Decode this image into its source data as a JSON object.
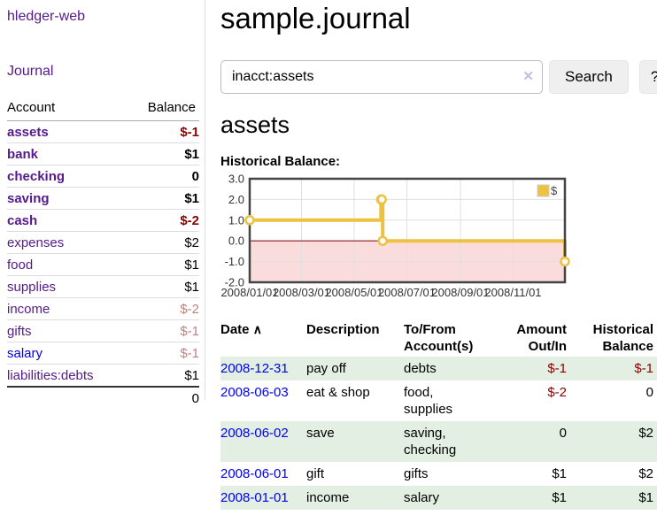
{
  "sidebar": {
    "app_title": "hledger-web",
    "journal_label": "Journal",
    "accounts_table": {
      "headers": {
        "account": "Account",
        "balance": "Balance"
      },
      "rows": [
        {
          "name": "assets",
          "balance": "$-1",
          "depth": 1,
          "bold": true,
          "negative": "strong",
          "link": "purple"
        },
        {
          "name": "bank",
          "balance": "$1",
          "depth": 2,
          "bold": true,
          "negative": "none",
          "link": "purple"
        },
        {
          "name": "checking",
          "balance": "0",
          "depth": 3,
          "bold": true,
          "negative": "none",
          "link": "purple"
        },
        {
          "name": "saving",
          "balance": "$1",
          "depth": 3,
          "bold": true,
          "negative": "none",
          "link": "purple"
        },
        {
          "name": "cash",
          "balance": "$-2",
          "depth": 2,
          "bold": true,
          "negative": "strong",
          "link": "purple"
        },
        {
          "name": "expenses",
          "balance": "$2",
          "depth": 1,
          "bold": false,
          "negative": "none",
          "link": "purple"
        },
        {
          "name": "food",
          "balance": "$1",
          "depth": 2,
          "bold": false,
          "negative": "none",
          "link": "purple"
        },
        {
          "name": "supplies",
          "balance": "$1",
          "depth": 2,
          "bold": false,
          "negative": "none",
          "link": "purple"
        },
        {
          "name": "income",
          "balance": "$-2",
          "depth": 1,
          "bold": false,
          "negative": "muted",
          "link": "purple"
        },
        {
          "name": "gifts",
          "balance": "$-1",
          "depth": 2,
          "bold": false,
          "negative": "muted",
          "link": "purple"
        },
        {
          "name": "salary",
          "balance": "$-1",
          "depth": 2,
          "bold": false,
          "negative": "muted",
          "link": "blue"
        },
        {
          "name": "liabilities:debts",
          "balance": "$1",
          "depth": 1,
          "bold": false,
          "negative": "none",
          "link": "purple"
        }
      ],
      "total": "0"
    }
  },
  "header": {
    "title": "sample.journal"
  },
  "search": {
    "query": "inacct:assets",
    "clear_icon_glyph": "✕",
    "search_button_label": "Search",
    "help_button_label": "?"
  },
  "account_page": {
    "heading": "assets",
    "chart_label": "Historical Balance:"
  },
  "chart_data": {
    "type": "line",
    "subtype": "step",
    "title": "Historical Balance",
    "legend": [
      {
        "label": "$",
        "color": "#edc240"
      }
    ],
    "legend_position": "top-right",
    "grid": true,
    "x": [
      "2008-01-01",
      "2008-06-01",
      "2008-06-02",
      "2008-06-03",
      "2008-12-31"
    ],
    "x_days": [
      0,
      152,
      153,
      154,
      365
    ],
    "series": [
      {
        "name": "$",
        "values": [
          1,
          2,
          2,
          0,
          -1
        ]
      }
    ],
    "ylim": [
      -2,
      3
    ],
    "xlim_days": [
      0,
      365
    ],
    "y_ticks": [
      "3.0",
      "2.0",
      "1.0",
      "0.0",
      "-1.0",
      "-2.0"
    ],
    "y_tick_values": [
      3,
      2,
      1,
      0,
      -1,
      -2
    ],
    "x_tick_labels": [
      "2008/01/01",
      "2008/03/01",
      "2008/05/01",
      "2008/07/01",
      "2008/09/01",
      "2008/11/01"
    ],
    "x_tick_days": [
      0,
      60,
      121,
      182,
      244,
      305
    ],
    "negative_region": true
  },
  "register_table": {
    "headers": {
      "date": "Date",
      "sort_indicator": "∧",
      "description": "Description",
      "accounts": "To/From Account(s)",
      "amount": "Amount Out/In",
      "balance": "Historical Balance"
    },
    "rows": [
      {
        "date": "2008-12-31",
        "description": "pay off",
        "accounts": "debts",
        "amount": "$-1",
        "balance": "$-1"
      },
      {
        "date": "2008-06-03",
        "description": "eat & shop",
        "accounts": "food, supplies",
        "amount": "$-2",
        "balance": "0"
      },
      {
        "date": "2008-06-02",
        "description": "save",
        "accounts": "saving, checking",
        "amount": "0",
        "balance": "$2"
      },
      {
        "date": "2008-06-01",
        "description": "gift",
        "accounts": "gifts",
        "amount": "$1",
        "balance": "$2"
      },
      {
        "date": "2008-01-01",
        "description": "income",
        "accounts": "salary",
        "amount": "$1",
        "balance": "$1"
      }
    ]
  },
  "colors": {
    "link_purple": "#551a8b",
    "link_blue": "#0000ee",
    "negative_strong": "#8b0000",
    "negative_muted": "#c08181",
    "row_stripe_green": "#e2efe2",
    "series_gold": "#edc240",
    "negative_region_pink": "#fadcdc",
    "zero_line_red": "#8b1a1a",
    "grid_gray": "#e0e0e0",
    "plot_border": "#444444",
    "button_bg": "#efefef"
  }
}
